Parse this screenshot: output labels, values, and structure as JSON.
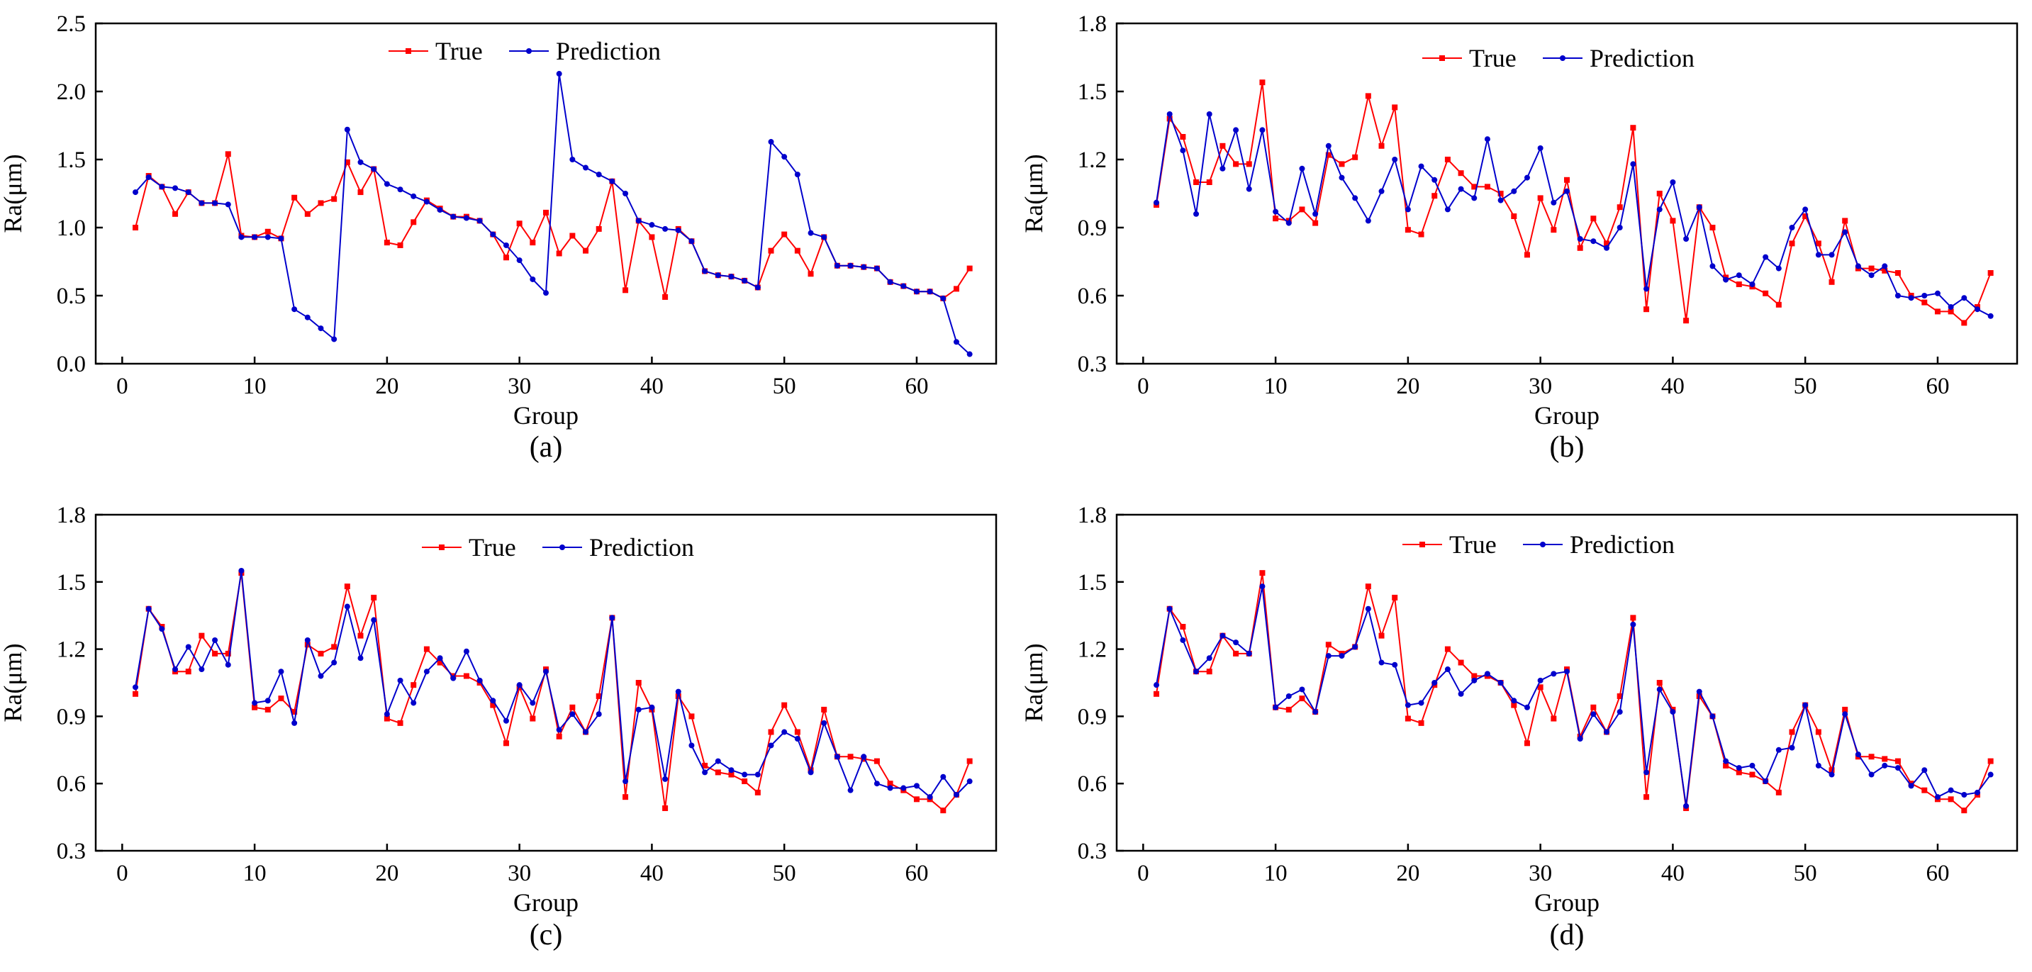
{
  "colors": {
    "true_series": "#ff0000",
    "prediction_series": "#0000cc",
    "axis": "#000000"
  },
  "chart_data": [
    {
      "type": "line",
      "caption": "(a)",
      "xlabel": "Group",
      "ylabel": "Ra(μm)",
      "xlim": [
        -2,
        66
      ],
      "ylim": [
        0.0,
        2.5
      ],
      "xticks": [
        0,
        10,
        20,
        30,
        40,
        50,
        60
      ],
      "xtick_labels": [
        "0",
        "10",
        "20",
        "30",
        "40",
        "50",
        "60"
      ],
      "yticks": [
        0.0,
        0.5,
        1.0,
        1.5,
        2.0,
        2.5
      ],
      "ytick_labels": [
        "0.0",
        "0.5",
        "1.0",
        "1.5",
        "2.0",
        "2.5"
      ],
      "legend": [
        "True",
        "Prediction"
      ],
      "legend_position": "top-center",
      "x": [
        1,
        2,
        3,
        4,
        5,
        6,
        7,
        8,
        9,
        10,
        11,
        12,
        13,
        14,
        15,
        16,
        17,
        18,
        19,
        20,
        21,
        22,
        23,
        24,
        25,
        26,
        27,
        28,
        29,
        30,
        31,
        32,
        33,
        34,
        35,
        36,
        37,
        38,
        39,
        40,
        41,
        42,
        43,
        44,
        45,
        46,
        47,
        48,
        49,
        50,
        51,
        52,
        53,
        54,
        55,
        56,
        57,
        58,
        59,
        60,
        61,
        62,
        63,
        64
      ],
      "series": [
        {
          "name": "True",
          "values": [
            1.0,
            1.38,
            1.3,
            1.1,
            1.26,
            1.18,
            1.18,
            1.54,
            0.94,
            0.93,
            0.97,
            0.92,
            1.22,
            1.1,
            1.18,
            1.21,
            1.48,
            1.26,
            1.43,
            0.89,
            0.87,
            1.04,
            1.2,
            1.14,
            1.08,
            1.08,
            1.05,
            0.95,
            0.78,
            1.03,
            0.89,
            1.11,
            0.81,
            0.94,
            0.83,
            0.99,
            1.34,
            0.54,
            1.05,
            0.93,
            0.49,
            0.99,
            0.9,
            0.68,
            0.65,
            0.64,
            0.61,
            0.56,
            0.83,
            0.95,
            0.83,
            0.66,
            0.93,
            0.72,
            0.72,
            0.71,
            0.7,
            0.6,
            0.57,
            0.53,
            0.53,
            0.48,
            0.55,
            0.7
          ]
        },
        {
          "name": "Prediction",
          "values": [
            1.26,
            1.37,
            1.3,
            1.29,
            1.26,
            1.18,
            1.18,
            1.17,
            0.93,
            0.93,
            0.93,
            0.92,
            0.4,
            0.34,
            0.26,
            0.18,
            1.72,
            1.48,
            1.43,
            1.32,
            1.28,
            1.23,
            1.19,
            1.13,
            1.08,
            1.07,
            1.05,
            0.95,
            0.87,
            0.76,
            0.62,
            0.52,
            2.13,
            1.5,
            1.44,
            1.39,
            1.34,
            1.25,
            1.05,
            1.02,
            0.99,
            0.98,
            0.9,
            0.68,
            0.65,
            0.64,
            0.61,
            0.56,
            1.63,
            1.52,
            1.39,
            0.96,
            0.93,
            0.72,
            0.72,
            0.71,
            0.7,
            0.6,
            0.57,
            0.53,
            0.53,
            0.48,
            0.16,
            0.07
          ]
        }
      ]
    },
    {
      "type": "line",
      "caption": "(b)",
      "xlabel": "Group",
      "ylabel": "Ra(μm)",
      "xlim": [
        -2,
        66
      ],
      "ylim": [
        0.3,
        1.8
      ],
      "xticks": [
        0,
        10,
        20,
        30,
        40,
        50,
        60
      ],
      "xtick_labels": [
        "0",
        "10",
        "20",
        "30",
        "40",
        "50",
        "60"
      ],
      "yticks": [
        0.3,
        0.6,
        0.9,
        1.2,
        1.5,
        1.8
      ],
      "ytick_labels": [
        "0.3",
        "0.6",
        "0.9",
        "1.2",
        "1.5",
        "1.8"
      ],
      "legend": [
        "True",
        "Prediction"
      ],
      "legend_position": "top-center",
      "x": [
        1,
        2,
        3,
        4,
        5,
        6,
        7,
        8,
        9,
        10,
        11,
        12,
        13,
        14,
        15,
        16,
        17,
        18,
        19,
        20,
        21,
        22,
        23,
        24,
        25,
        26,
        27,
        28,
        29,
        30,
        31,
        32,
        33,
        34,
        35,
        36,
        37,
        38,
        39,
        40,
        41,
        42,
        43,
        44,
        45,
        46,
        47,
        48,
        49,
        50,
        51,
        52,
        53,
        54,
        55,
        56,
        57,
        58,
        59,
        60,
        61,
        62,
        63,
        64
      ],
      "series": [
        {
          "name": "True",
          "values": [
            1.0,
            1.38,
            1.3,
            1.1,
            1.1,
            1.26,
            1.18,
            1.18,
            1.54,
            0.94,
            0.93,
            0.98,
            0.92,
            1.22,
            1.18,
            1.21,
            1.48,
            1.26,
            1.43,
            0.89,
            0.87,
            1.04,
            1.2,
            1.14,
            1.08,
            1.08,
            1.05,
            0.95,
            0.78,
            1.03,
            0.89,
            1.11,
            0.81,
            0.94,
            0.83,
            0.99,
            1.34,
            0.54,
            1.05,
            0.93,
            0.49,
            0.99,
            0.9,
            0.68,
            0.65,
            0.64,
            0.61,
            0.56,
            0.83,
            0.95,
            0.83,
            0.66,
            0.93,
            0.72,
            0.72,
            0.71,
            0.7,
            0.6,
            0.57,
            0.53,
            0.53,
            0.48,
            0.55,
            0.7
          ]
        },
        {
          "name": "Prediction",
          "values": [
            1.01,
            1.4,
            1.24,
            0.96,
            1.4,
            1.16,
            1.33,
            1.07,
            1.33,
            0.97,
            0.92,
            1.16,
            0.96,
            1.26,
            1.12,
            1.03,
            0.93,
            1.06,
            1.2,
            0.98,
            1.17,
            1.11,
            0.98,
            1.07,
            1.03,
            1.29,
            1.02,
            1.06,
            1.12,
            1.25,
            1.01,
            1.06,
            0.85,
            0.84,
            0.81,
            0.9,
            1.18,
            0.63,
            0.98,
            1.1,
            0.85,
            0.99,
            0.73,
            0.67,
            0.69,
            0.65,
            0.77,
            0.72,
            0.9,
            0.98,
            0.78,
            0.78,
            0.88,
            0.73,
            0.69,
            0.73,
            0.6,
            0.59,
            0.6,
            0.61,
            0.55,
            0.59,
            0.54,
            0.51
          ]
        }
      ]
    },
    {
      "type": "line",
      "caption": "(c)",
      "xlabel": "Group",
      "ylabel": "Ra(μm)",
      "xlim": [
        -2,
        66
      ],
      "ylim": [
        0.3,
        1.8
      ],
      "xticks": [
        0,
        10,
        20,
        30,
        40,
        50,
        60
      ],
      "xtick_labels": [
        "0",
        "10",
        "20",
        "30",
        "40",
        "50",
        "60"
      ],
      "yticks": [
        0.3,
        0.6,
        0.9,
        1.2,
        1.5,
        1.8
      ],
      "ytick_labels": [
        "0.3",
        "0.6",
        "0.9",
        "1.2",
        "1.5",
        "1.8"
      ],
      "legend": [
        "True",
        "Prediction"
      ],
      "legend_position": "top-center",
      "x": [
        1,
        2,
        3,
        4,
        5,
        6,
        7,
        8,
        9,
        10,
        11,
        12,
        13,
        14,
        15,
        16,
        17,
        18,
        19,
        20,
        21,
        22,
        23,
        24,
        25,
        26,
        27,
        28,
        29,
        30,
        31,
        32,
        33,
        34,
        35,
        36,
        37,
        38,
        39,
        40,
        41,
        42,
        43,
        44,
        45,
        46,
        47,
        48,
        49,
        50,
        51,
        52,
        53,
        54,
        55,
        56,
        57,
        58,
        59,
        60,
        61,
        62,
        63,
        64
      ],
      "series": [
        {
          "name": "True",
          "values": [
            1.0,
            1.38,
            1.3,
            1.1,
            1.1,
            1.26,
            1.18,
            1.18,
            1.54,
            0.94,
            0.93,
            0.98,
            0.92,
            1.22,
            1.18,
            1.21,
            1.48,
            1.26,
            1.43,
            0.89,
            0.87,
            1.04,
            1.2,
            1.14,
            1.08,
            1.08,
            1.05,
            0.95,
            0.78,
            1.03,
            0.89,
            1.11,
            0.81,
            0.94,
            0.83,
            0.99,
            1.34,
            0.54,
            1.05,
            0.93,
            0.49,
            0.99,
            0.9,
            0.68,
            0.65,
            0.64,
            0.61,
            0.56,
            0.83,
            0.95,
            0.83,
            0.66,
            0.93,
            0.72,
            0.72,
            0.71,
            0.7,
            0.6,
            0.57,
            0.53,
            0.53,
            0.48,
            0.55,
            0.7
          ]
        },
        {
          "name": "Prediction",
          "values": [
            1.03,
            1.38,
            1.29,
            1.11,
            1.21,
            1.11,
            1.24,
            1.13,
            1.55,
            0.96,
            0.97,
            1.1,
            0.87,
            1.24,
            1.08,
            1.14,
            1.39,
            1.16,
            1.33,
            0.91,
            1.06,
            0.96,
            1.1,
            1.16,
            1.07,
            1.19,
            1.06,
            0.97,
            0.88,
            1.04,
            0.96,
            1.1,
            0.84,
            0.91,
            0.83,
            0.91,
            1.34,
            0.61,
            0.93,
            0.94,
            0.62,
            1.01,
            0.77,
            0.65,
            0.7,
            0.66,
            0.64,
            0.64,
            0.77,
            0.83,
            0.8,
            0.65,
            0.87,
            0.72,
            0.57,
            0.72,
            0.6,
            0.58,
            0.58,
            0.59,
            0.54,
            0.63,
            0.55,
            0.61
          ]
        }
      ]
    },
    {
      "type": "line",
      "caption": "(d)",
      "xlabel": "Group",
      "ylabel": "Ra(μm)",
      "xlim": [
        -2,
        66
      ],
      "ylim": [
        0.3,
        1.8
      ],
      "xticks": [
        0,
        10,
        20,
        30,
        40,
        50,
        60
      ],
      "xtick_labels": [
        "0",
        "10",
        "20",
        "30",
        "40",
        "50",
        "60"
      ],
      "yticks": [
        0.3,
        0.6,
        0.9,
        1.2,
        1.5,
        1.8
      ],
      "ytick_labels": [
        "0.3",
        "0.6",
        "0.9",
        "1.2",
        "1.5",
        "1.8"
      ],
      "legend": [
        "True",
        "Prediction"
      ],
      "legend_position": "top-center",
      "x": [
        1,
        2,
        3,
        4,
        5,
        6,
        7,
        8,
        9,
        10,
        11,
        12,
        13,
        14,
        15,
        16,
        17,
        18,
        19,
        20,
        21,
        22,
        23,
        24,
        25,
        26,
        27,
        28,
        29,
        30,
        31,
        32,
        33,
        34,
        35,
        36,
        37,
        38,
        39,
        40,
        41,
        42,
        43,
        44,
        45,
        46,
        47,
        48,
        49,
        50,
        51,
        52,
        53,
        54,
        55,
        56,
        57,
        58,
        59,
        60,
        61,
        62,
        63,
        64
      ],
      "series": [
        {
          "name": "True",
          "values": [
            1.0,
            1.38,
            1.3,
            1.1,
            1.1,
            1.26,
            1.18,
            1.18,
            1.54,
            0.94,
            0.93,
            0.98,
            0.92,
            1.22,
            1.18,
            1.21,
            1.48,
            1.26,
            1.43,
            0.89,
            0.87,
            1.04,
            1.2,
            1.14,
            1.08,
            1.08,
            1.05,
            0.95,
            0.78,
            1.03,
            0.89,
            1.11,
            0.81,
            0.94,
            0.83,
            0.99,
            1.34,
            0.54,
            1.05,
            0.93,
            0.49,
            0.99,
            0.9,
            0.68,
            0.65,
            0.64,
            0.61,
            0.56,
            0.83,
            0.95,
            0.83,
            0.66,
            0.93,
            0.72,
            0.72,
            0.71,
            0.7,
            0.6,
            0.57,
            0.53,
            0.53,
            0.48,
            0.55,
            0.7
          ]
        },
        {
          "name": "Prediction",
          "values": [
            1.04,
            1.38,
            1.24,
            1.1,
            1.16,
            1.26,
            1.23,
            1.18,
            1.48,
            0.94,
            0.99,
            1.02,
            0.92,
            1.17,
            1.17,
            1.21,
            1.38,
            1.14,
            1.13,
            0.95,
            0.96,
            1.05,
            1.11,
            1.0,
            1.06,
            1.09,
            1.05,
            0.97,
            0.94,
            1.06,
            1.09,
            1.1,
            0.8,
            0.91,
            0.83,
            0.92,
            1.31,
            0.65,
            1.02,
            0.92,
            0.5,
            1.01,
            0.9,
            0.7,
            0.67,
            0.68,
            0.61,
            0.75,
            0.76,
            0.95,
            0.68,
            0.64,
            0.91,
            0.73,
            0.64,
            0.68,
            0.67,
            0.59,
            0.66,
            0.54,
            0.57,
            0.55,
            0.56,
            0.64
          ]
        }
      ]
    }
  ]
}
